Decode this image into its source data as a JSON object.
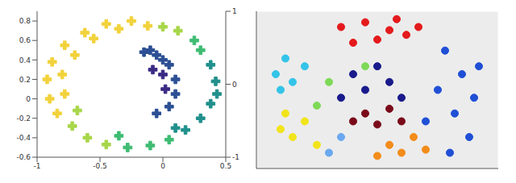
{
  "chart_data": [
    {
      "type": "scatter",
      "marker": "cross",
      "grid": false,
      "xlim": [
        -1,
        0.5
      ],
      "xticks": [
        -1,
        -0.5,
        0,
        0.5
      ],
      "ylim": [
        -0.6,
        0.9
      ],
      "yticks": [
        -0.6,
        -0.4,
        -0.2,
        0,
        0.2,
        0.4,
        0.6,
        0.8
      ],
      "zlim": [
        -1,
        1
      ],
      "zticks": [
        -1,
        0,
        1
      ],
      "series": [
        {
          "color": "#f2d23c",
          "x": [
            -0.25,
            -0.45,
            -0.62,
            -0.78,
            -0.88,
            -0.92,
            -0.9,
            -0.84,
            -0.35,
            -0.55,
            -0.7,
            -0.8,
            -0.78,
            -0.12
          ],
          "y": [
            0.8,
            0.77,
            0.68,
            0.55,
            0.38,
            0.2,
            0.0,
            -0.15,
            0.72,
            0.62,
            0.45,
            0.25,
            0.05,
            0.75
          ]
        },
        {
          "color": "#a8d64a",
          "x": [
            -0.72,
            -0.6,
            -0.45,
            -0.68,
            0.0,
            0.12
          ],
          "y": [
            -0.28,
            -0.4,
            -0.47,
            -0.12,
            0.74,
            0.7
          ]
        },
        {
          "color": "#3fbc73",
          "x": [
            -0.28,
            -0.1,
            0.05,
            -0.35,
            0.25,
            0.3
          ],
          "y": [
            -0.5,
            -0.48,
            -0.42,
            -0.38,
            0.6,
            0.5
          ]
        },
        {
          "color": "#21908c",
          "x": [
            0.18,
            0.3,
            0.38,
            0.1,
            0.38,
            0.42,
            0.43
          ],
          "y": [
            -0.32,
            -0.2,
            -0.05,
            -0.3,
            0.35,
            0.18,
            0.05
          ]
        },
        {
          "color": "#2c4f94",
          "x": [
            -0.05,
            0.05,
            0.1,
            0.1,
            0.05,
            -0.05,
            0.0,
            -0.1,
            -0.15
          ],
          "y": [
            0.45,
            0.35,
            0.2,
            0.05,
            -0.08,
            -0.15,
            0.4,
            0.5,
            0.48
          ]
        },
        {
          "color": "#3b2a84",
          "x": [
            0.0,
            0.02,
            -0.08
          ],
          "y": [
            0.25,
            0.1,
            0.3
          ]
        }
      ]
    },
    {
      "type": "scatter",
      "marker": "circle",
      "grid": true,
      "tick_labels": false,
      "xlim": [
        0,
        1
      ],
      "ylim": [
        0,
        1
      ],
      "series": [
        {
          "color": "#e41a1c",
          "x": [
            0.35,
            0.45,
            0.55,
            0.5,
            0.62,
            0.4,
            0.58,
            0.67
          ],
          "y": [
            0.9,
            0.93,
            0.88,
            0.82,
            0.85,
            0.8,
            0.95,
            0.9
          ]
        },
        {
          "color": "#1f4fd6",
          "x": [
            0.78,
            0.85,
            0.9,
            0.82,
            0.75,
            0.88,
            0.8,
            0.7,
            0.92
          ],
          "y": [
            0.75,
            0.6,
            0.45,
            0.35,
            0.5,
            0.2,
            0.1,
            0.3,
            0.65
          ]
        },
        {
          "color": "#1a1a8c",
          "x": [
            0.4,
            0.45,
            0.55,
            0.5,
            0.35,
            0.6
          ],
          "y": [
            0.6,
            0.5,
            0.55,
            0.65,
            0.45,
            0.45
          ]
        },
        {
          "color": "#7a0a1a",
          "x": [
            0.45,
            0.5,
            0.55,
            0.4,
            0.6
          ],
          "y": [
            0.35,
            0.28,
            0.38,
            0.3,
            0.3
          ]
        },
        {
          "color": "#33c4e8",
          "x": [
            0.08,
            0.12,
            0.15,
            0.2,
            0.1
          ],
          "y": [
            0.6,
            0.7,
            0.55,
            0.65,
            0.5
          ]
        },
        {
          "color": "#f2e41a",
          "x": [
            0.1,
            0.15,
            0.2,
            0.25,
            0.12
          ],
          "y": [
            0.25,
            0.2,
            0.3,
            0.15,
            0.35
          ]
        },
        {
          "color": "#f28c1a",
          "x": [
            0.55,
            0.6,
            0.65,
            0.5,
            0.7
          ],
          "y": [
            0.15,
            0.1,
            0.2,
            0.08,
            0.12
          ]
        },
        {
          "color": "#7ed957",
          "x": [
            0.3,
            0.45,
            0.25
          ],
          "y": [
            0.55,
            0.65,
            0.4
          ]
        },
        {
          "color": "#6aa8f0",
          "x": [
            0.35,
            0.3
          ],
          "y": [
            0.2,
            0.1
          ]
        }
      ]
    }
  ]
}
